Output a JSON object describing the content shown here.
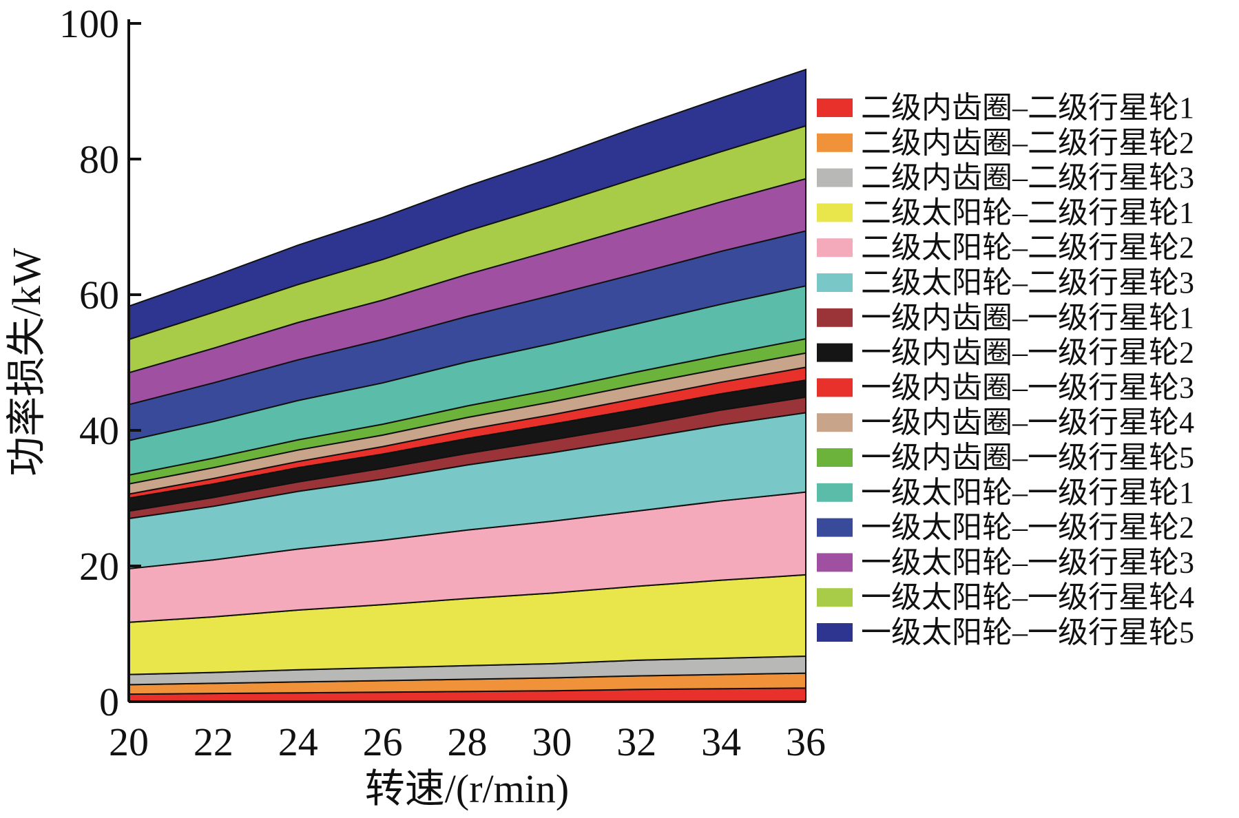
{
  "chart_data": {
    "type": "area",
    "stacked": true,
    "title": "",
    "xlabel": "转速/(r/min)",
    "ylabel": "功率损失/kW",
    "xlim": [
      20,
      36
    ],
    "ylim": [
      0,
      100
    ],
    "x": [
      20,
      22,
      24,
      26,
      28,
      30,
      32,
      34,
      36
    ],
    "xticks": [
      "20",
      "22",
      "24",
      "26",
      "28",
      "30",
      "32",
      "34",
      "36"
    ],
    "yticks": [
      "0",
      "20",
      "40",
      "60",
      "80",
      "100"
    ],
    "grid": false,
    "legend_position": "right",
    "series": [
      {
        "name": "二级内齿圈–二级行星轮1",
        "color": "#e8312a",
        "values": [
          1.1,
          1.2,
          1.3,
          1.4,
          1.5,
          1.6,
          1.8,
          1.9,
          2.0
        ]
      },
      {
        "name": "二级内齿圈–二级行星轮2",
        "color": "#f0923a",
        "values": [
          1.4,
          1.5,
          1.6,
          1.7,
          1.8,
          1.9,
          2.0,
          2.1,
          2.2
        ]
      },
      {
        "name": "二级内齿圈–二级行星轮3",
        "color": "#b8b8b6",
        "values": [
          1.5,
          1.6,
          1.8,
          1.9,
          2.0,
          2.1,
          2.3,
          2.4,
          2.5
        ]
      },
      {
        "name": "二级太阳轮–二级行星轮1",
        "color": "#e8e64a",
        "values": [
          7.7,
          8.2,
          8.8,
          9.3,
          9.9,
          10.4,
          10.9,
          11.5,
          12.0
        ]
      },
      {
        "name": "二级太阳轮–二级行星轮2",
        "color": "#f5aabc",
        "values": [
          7.9,
          8.4,
          9.0,
          9.5,
          10.1,
          10.6,
          11.1,
          11.7,
          12.2
        ]
      },
      {
        "name": "二级太阳轮–二级行星轮3",
        "color": "#79c7c6",
        "values": [
          7.4,
          7.9,
          8.5,
          9.0,
          9.6,
          10.1,
          10.6,
          11.2,
          11.7
        ]
      },
      {
        "name": "一级内齿圈–一级行星轮1",
        "color": "#9b3438",
        "values": [
          1.1,
          1.3,
          1.4,
          1.6,
          1.7,
          1.9,
          2.0,
          2.2,
          2.3
        ]
      },
      {
        "name": "一级内齿圈–一级行星轮2",
        "color": "#151515",
        "values": [
          1.9,
          2.0,
          2.1,
          2.1,
          2.2,
          2.3,
          2.4,
          2.4,
          2.5
        ]
      },
      {
        "name": "一级内齿圈–一级行星轮3",
        "color": "#e8312a",
        "values": [
          0.6,
          0.8,
          0.9,
          1.1,
          1.3,
          1.4,
          1.6,
          1.7,
          1.9
        ]
      },
      {
        "name": "一级内齿圈–一级行星轮4",
        "color": "#c8a48a",
        "values": [
          1.5,
          1.6,
          1.7,
          1.7,
          1.8,
          1.9,
          2.0,
          2.0,
          2.1
        ]
      },
      {
        "name": "一级内齿圈–一级行星轮5",
        "color": "#6bb33a",
        "values": [
          1.3,
          1.4,
          1.5,
          1.6,
          1.7,
          1.8,
          1.9,
          2.0,
          2.1
        ]
      },
      {
        "name": "一级太阳轮–一级行星轮1",
        "color": "#5bbcaa",
        "values": [
          5.1,
          5.4,
          5.8,
          6.1,
          6.5,
          6.8,
          7.1,
          7.5,
          7.8
        ]
      },
      {
        "name": "一级太阳轮–一级行星轮2",
        "color": "#3a4a9a",
        "values": [
          5.3,
          5.7,
          6.0,
          6.4,
          6.7,
          7.1,
          7.4,
          7.8,
          8.1
        ]
      },
      {
        "name": "一级太阳轮–一级行星轮3",
        "color": "#a050a0",
        "values": [
          4.7,
          5.1,
          5.5,
          5.8,
          6.2,
          6.6,
          7.0,
          7.3,
          7.7
        ]
      },
      {
        "name": "一级太阳轮–一级行星轮4",
        "color": "#a8cc48",
        "values": [
          4.9,
          5.3,
          5.6,
          6.0,
          6.4,
          6.7,
          7.1,
          7.4,
          7.8
        ]
      },
      {
        "name": "一级太阳轮–一级行星轮5",
        "color": "#2e3590",
        "values": [
          4.9,
          5.3,
          5.8,
          6.2,
          6.6,
          7.0,
          7.5,
          7.9,
          8.3
        ]
      }
    ]
  }
}
